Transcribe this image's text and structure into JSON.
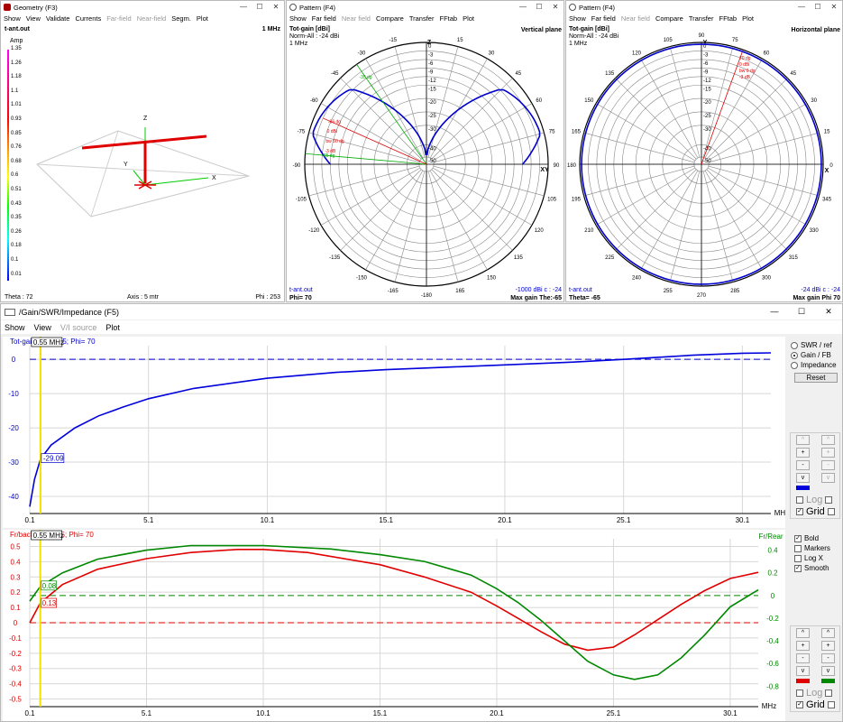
{
  "geometry": {
    "title": "Geometry   (F3)",
    "menu": [
      "Show",
      "View",
      "Validate",
      "Currents",
      "Far-field",
      "Near-field",
      "Segm.",
      "Plot"
    ],
    "menu_disabled": [
      "Far-field",
      "Near-field"
    ],
    "file": "t-ant.out",
    "freq": "1 MHz",
    "amp_label": "Amp",
    "scale": [
      "1.35",
      "1.26",
      "1.18",
      "1.1",
      "1.01",
      "0.93",
      "0.85",
      "0.76",
      "0.68",
      "0.6",
      "0.51",
      "0.43",
      "0.35",
      "0.26",
      "0.18",
      "0.1",
      "0.01"
    ],
    "theta": "Theta : 72",
    "axis": "Axis : 5 mtr",
    "phi": "Phi : 253",
    "axes": {
      "z": "Z",
      "y": "Y",
      "x": "X"
    }
  },
  "pattern_v": {
    "title": "Pattern   (F4)",
    "menu": [
      "Show",
      "Far field",
      "Near field",
      "Compare",
      "Transfer",
      "FFtab",
      "Plot"
    ],
    "menu_disabled": [
      "Near field"
    ],
    "gain_label": "Tot-gain [dBi]",
    "norm": "Norm-All : -24 dBi",
    "freq": "1 MHz",
    "plane": "Vertical plane",
    "angles": [
      "-15",
      "Z",
      "15",
      "-30",
      "30",
      "-45",
      "45",
      "-60",
      "60",
      "-75",
      "75",
      "-90",
      "90",
      "XY",
      "-105",
      "105",
      "-120",
      "120",
      "-135",
      "135",
      "-150",
      "150",
      "-165",
      "165",
      "-180"
    ],
    "rings": [
      "0",
      "-3",
      "-6",
      "-9",
      "-12",
      "-15",
      "-20",
      "-25",
      "-30",
      "-40",
      "-50"
    ],
    "marks": [
      "-35 dg",
      "-66 dg",
      "0 dBi",
      "bw 50 dg",
      "-3 dB",
      "-85 dg"
    ],
    "file": "t-ant.out",
    "phi": "Phi= 70",
    "gain_info": "-1000 ",
    "dbi": "dBi",
    "c": "c",
    "gain_val": "-24",
    "max": "Max gain The:-65"
  },
  "pattern_h": {
    "title": "Pattern   (F4)",
    "menu": [
      "Show",
      "Far field",
      "Near field",
      "Compare",
      "Transfer",
      "FFtab",
      "Plot"
    ],
    "menu_disabled": [
      "Near field"
    ],
    "gain_label": "Tot-gain [dBi]",
    "norm": "Norm-All : -24 dBi",
    "freq": "1 MHz",
    "plane": "Horizontal plane",
    "angles": [
      "90",
      "Y",
      "75",
      "105",
      "60",
      "120",
      "45",
      "135",
      "30",
      "150",
      "15",
      "165",
      "0",
      "180",
      "X",
      "195",
      "345",
      "210",
      "330",
      "225",
      "315",
      "240",
      "300",
      "255",
      "285",
      "270"
    ],
    "rings": [
      "0",
      "-3",
      "-6",
      "-9",
      "-12",
      "-15",
      "-20",
      "-25",
      "-30",
      "-40",
      "-50"
    ],
    "marks": [
      "70 dg",
      "0 dBi",
      "bw 0 dg",
      "-3 dB"
    ],
    "file": "t-ant.out",
    "theta": "Theta= -65",
    "gain_info": "-24 ",
    "dbi": "dBi",
    "c": "c",
    "gain_val": "-24",
    "max": "Max gain Phi 70"
  },
  "gain_win": {
    "title": "/Gain/SWR/Impedance (F5)",
    "menu": [
      "Show",
      "View",
      "V/I source",
      "Plot"
    ],
    "menu_disabled": [
      "V/I source"
    ],
    "radios": [
      {
        "label": "SWR / ref",
        "on": false
      },
      {
        "label": "Gain / FB",
        "on": true
      },
      {
        "label": "Impedance",
        "on": false
      }
    ],
    "reset": "Reset",
    "checks_top": [
      {
        "label": "Log",
        "on": false,
        "dis": true
      },
      {
        "label": "Grid",
        "on": true,
        "dis": false
      }
    ],
    "checks_mid": [
      {
        "label": "Bold",
        "on": true
      },
      {
        "label": "Markers",
        "on": false
      },
      {
        "label": "Log X",
        "on": false
      },
      {
        "label": "Smooth",
        "on": true
      }
    ],
    "checks_bot": [
      {
        "label": "Log",
        "on": false,
        "dis": true
      },
      {
        "label": "Grid",
        "on": true,
        "dis": false
      }
    ],
    "step_plus": "+",
    "step_minus": "-",
    "step_up": "^",
    "step_down": "v",
    "colors": {
      "gain": "#0000dd",
      "frback": "#e00000",
      "frrear": "#008800",
      "marker": "#f0e000"
    }
  },
  "chart_data": [
    {
      "type": "line",
      "title": "Tot-gain; The=-65; Phi= 70",
      "marker_label": "0.55 MHz",
      "value_label": "-29.09",
      "xlabel": "MHz",
      "xticks": [
        "0.1",
        "5.1",
        "10.1",
        "15.1",
        "20.1",
        "25.1",
        "30.1"
      ],
      "yticks": [
        "0",
        "-10",
        "-20",
        "-30",
        "-40"
      ],
      "ylim": [
        -45,
        4
      ],
      "xlim": [
        0.1,
        31.3
      ],
      "series": [
        {
          "values": [
            [
              0.1,
              -43
            ],
            [
              0.3,
              -35
            ],
            [
              0.55,
              -29.09
            ],
            [
              1,
              -25
            ],
            [
              2,
              -20
            ],
            [
              3,
              -16.5
            ],
            [
              4,
              -14
            ],
            [
              5.1,
              -11.5
            ],
            [
              7,
              -8.5
            ],
            [
              10.1,
              -5.5
            ],
            [
              13,
              -3.8
            ],
            [
              15.1,
              -3
            ],
            [
              20.1,
              -1.6
            ],
            [
              23,
              -0.8
            ],
            [
              25.1,
              0
            ],
            [
              28,
              1.2
            ],
            [
              30.1,
              1.8
            ],
            [
              31.3,
              1.9
            ]
          ]
        }
      ]
    },
    {
      "type": "line",
      "title": "Fr/back; The=-65; Phi= 70",
      "right_axis": "Fr/Rear",
      "marker_label": "0.55 MHz",
      "value_label_1": "0.08",
      "value_label_2": "0.13",
      "xlabel": "MHz",
      "xticks": [
        "0.1",
        "5.1",
        "10.1",
        "15.1",
        "20.1",
        "25.1",
        "30.1"
      ],
      "yticks_left": [
        "0.5",
        "0.4",
        "0.3",
        "0.2",
        "0.1",
        "0",
        "-0.1",
        "-0.2",
        "-0.3",
        "-0.4",
        "-0.5"
      ],
      "yticks_right": [
        "0.4",
        "0.2",
        "0",
        "-0.2",
        "-0.4",
        "-0.6",
        "-0.8"
      ],
      "ylim_left": [
        -0.55,
        0.55
      ],
      "ylim_right": [
        -0.98,
        0.5
      ],
      "xlim": [
        0.1,
        31.3
      ],
      "series": [
        {
          "axis": "left",
          "values": [
            [
              0.1,
              0
            ],
            [
              0.55,
              0.13
            ],
            [
              1.5,
              0.25
            ],
            [
              3,
              0.35
            ],
            [
              5.1,
              0.42
            ],
            [
              7,
              0.46
            ],
            [
              9,
              0.48
            ],
            [
              10.1,
              0.48
            ],
            [
              12,
              0.46
            ],
            [
              15.1,
              0.38
            ],
            [
              17,
              0.3
            ],
            [
              19,
              0.2
            ],
            [
              20.1,
              0.11
            ],
            [
              21,
              0.03
            ],
            [
              22,
              -0.06
            ],
            [
              23,
              -0.14
            ],
            [
              24,
              -0.18
            ],
            [
              25.1,
              -0.16
            ],
            [
              26,
              -0.08
            ],
            [
              27,
              0.02
            ],
            [
              28,
              0.12
            ],
            [
              29,
              0.21
            ],
            [
              30.1,
              0.29
            ],
            [
              31.3,
              0.33
            ]
          ]
        },
        {
          "axis": "right",
          "values": [
            [
              0.1,
              -0.05
            ],
            [
              0.55,
              0.08
            ],
            [
              1.5,
              0.2
            ],
            [
              3,
              0.32
            ],
            [
              5.1,
              0.4
            ],
            [
              7,
              0.44
            ],
            [
              10.1,
              0.44
            ],
            [
              13,
              0.41
            ],
            [
              15.1,
              0.36
            ],
            [
              17,
              0.3
            ],
            [
              19,
              0.18
            ],
            [
              20.1,
              0.06
            ],
            [
              21,
              -0.06
            ],
            [
              22,
              -0.22
            ],
            [
              23,
              -0.4
            ],
            [
              24,
              -0.58
            ],
            [
              25.1,
              -0.7
            ],
            [
              26,
              -0.74
            ],
            [
              27,
              -0.7
            ],
            [
              28,
              -0.55
            ],
            [
              29,
              -0.35
            ],
            [
              30.1,
              -0.1
            ],
            [
              31.3,
              0.05
            ]
          ]
        }
      ]
    }
  ]
}
